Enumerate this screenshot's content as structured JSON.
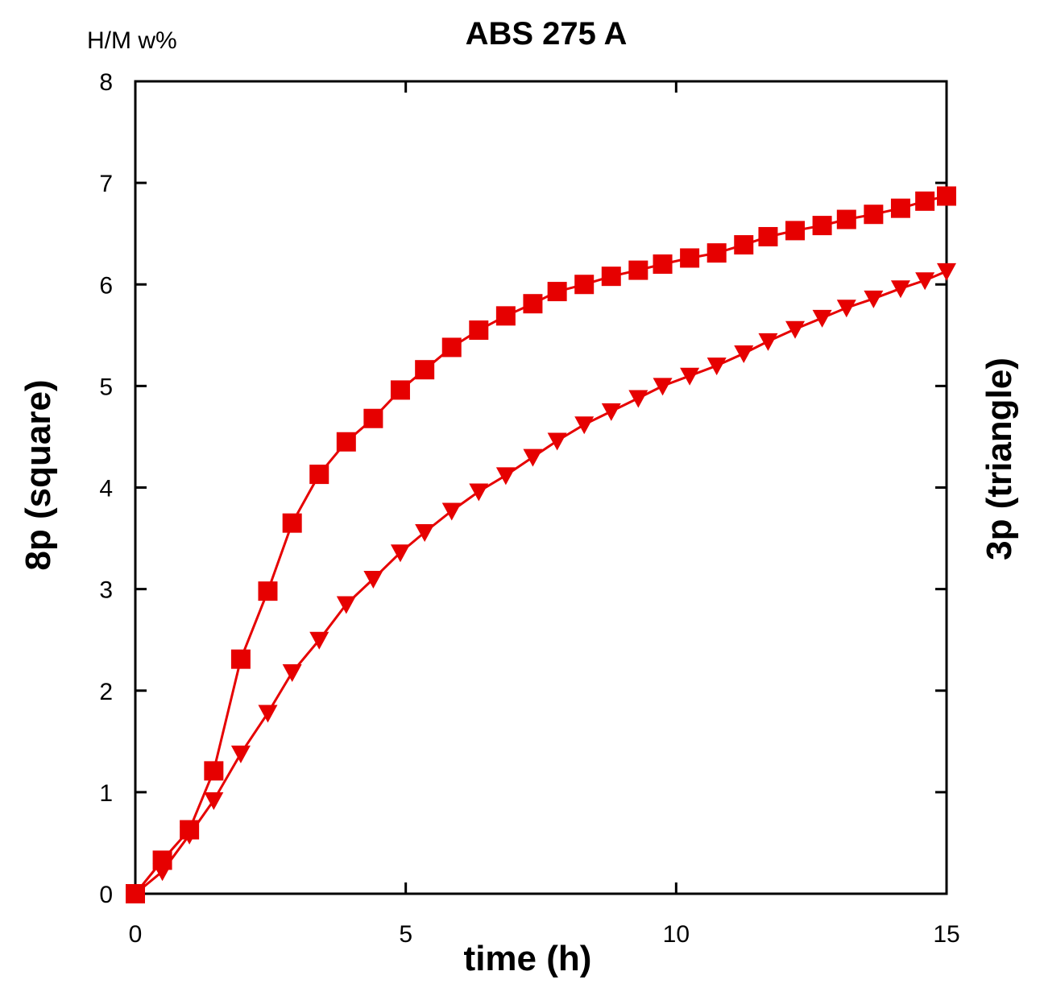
{
  "chart_data": {
    "type": "line",
    "title": "ABS 275 A",
    "unit_label": "H/M w%",
    "xlabel": "time (h)",
    "ylabel_left": "8p (square)",
    "ylabel_right": "3p (triangle)",
    "xlim": [
      0,
      15
    ],
    "ylim": [
      0,
      8
    ],
    "xticks": [
      0,
      5,
      10,
      15
    ],
    "yticks": [
      0,
      1,
      2,
      3,
      4,
      5,
      6,
      7,
      8
    ],
    "grid": false,
    "series_color": "#e60000",
    "series": [
      {
        "name": "8p (square)",
        "marker": "square",
        "x": [
          0,
          0.5,
          1.0,
          1.45,
          1.95,
          2.45,
          2.9,
          3.4,
          3.9,
          4.4,
          4.9,
          5.35,
          5.85,
          6.35,
          6.85,
          7.35,
          7.8,
          8.3,
          8.8,
          9.3,
          9.75,
          10.25,
          10.75,
          11.25,
          11.7,
          12.2,
          12.7,
          13.15,
          13.65,
          14.15,
          14.6,
          15.0
        ],
        "y": [
          0,
          0.33,
          0.63,
          1.21,
          2.31,
          2.98,
          3.65,
          4.13,
          4.45,
          4.68,
          4.96,
          5.16,
          5.38,
          5.55,
          5.69,
          5.81,
          5.93,
          6.0,
          6.08,
          6.14,
          6.2,
          6.26,
          6.31,
          6.39,
          6.47,
          6.53,
          6.58,
          6.64,
          6.69,
          6.75,
          6.82,
          6.87
        ]
      },
      {
        "name": "3p (triangle)",
        "marker": "triangle-down",
        "x": [
          0,
          0.5,
          1.0,
          1.45,
          1.95,
          2.45,
          2.9,
          3.4,
          3.9,
          4.4,
          4.9,
          5.35,
          5.85,
          6.35,
          6.85,
          7.35,
          7.8,
          8.3,
          8.8,
          9.3,
          9.75,
          10.25,
          10.75,
          11.25,
          11.7,
          12.2,
          12.7,
          13.15,
          13.65,
          14.15,
          14.6,
          15.0
        ],
        "y": [
          0,
          0.22,
          0.58,
          0.92,
          1.38,
          1.78,
          2.18,
          2.5,
          2.85,
          3.1,
          3.36,
          3.56,
          3.77,
          3.96,
          4.12,
          4.3,
          4.46,
          4.62,
          4.75,
          4.88,
          5.0,
          5.1,
          5.2,
          5.32,
          5.44,
          5.56,
          5.67,
          5.77,
          5.86,
          5.96,
          6.04,
          6.13
        ]
      }
    ]
  }
}
